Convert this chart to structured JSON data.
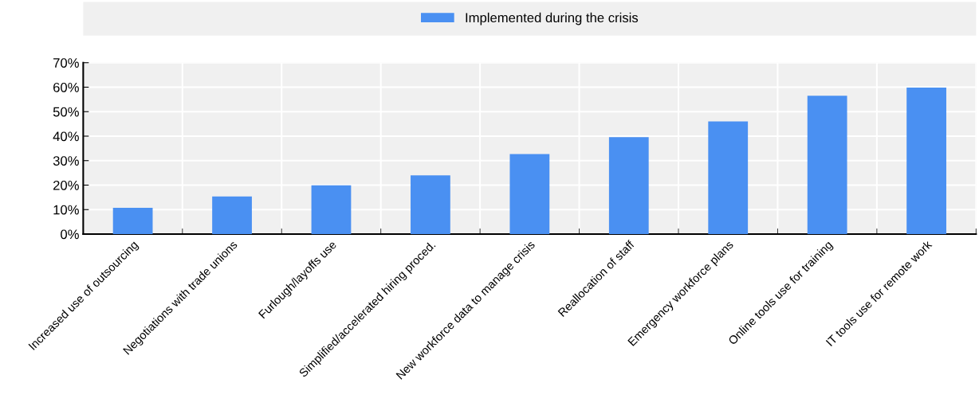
{
  "chart_data": {
    "type": "bar",
    "categories": [
      "Increased use of outsourcing",
      "Negotiations with trade unions",
      "Furlough/layoffs use",
      "Simplified/accelerated hiring proced.",
      "New workforce data to manage crisis",
      "Reallocation of staff",
      "Emergency workforce plans",
      "Online tools use for training",
      "IT tools use for remote work"
    ],
    "series": [
      {
        "name": "Implemented during the crisis",
        "color": "#4a90f2",
        "values": [
          10.7,
          15.4,
          19.9,
          24.0,
          32.7,
          39.6,
          46.0,
          56.5,
          59.8
        ]
      }
    ],
    "ylim": [
      0,
      70
    ],
    "yticks": [
      {
        "value": 0,
        "label": "0%"
      },
      {
        "value": 10,
        "label": "10%"
      },
      {
        "value": 20,
        "label": "20%"
      },
      {
        "value": 30,
        "label": "30%"
      },
      {
        "value": 40,
        "label": "40%"
      },
      {
        "value": 50,
        "label": "50%"
      },
      {
        "value": 60,
        "label": "60%"
      },
      {
        "value": 70,
        "label": "70%"
      }
    ],
    "grid": true,
    "legend": "top"
  }
}
